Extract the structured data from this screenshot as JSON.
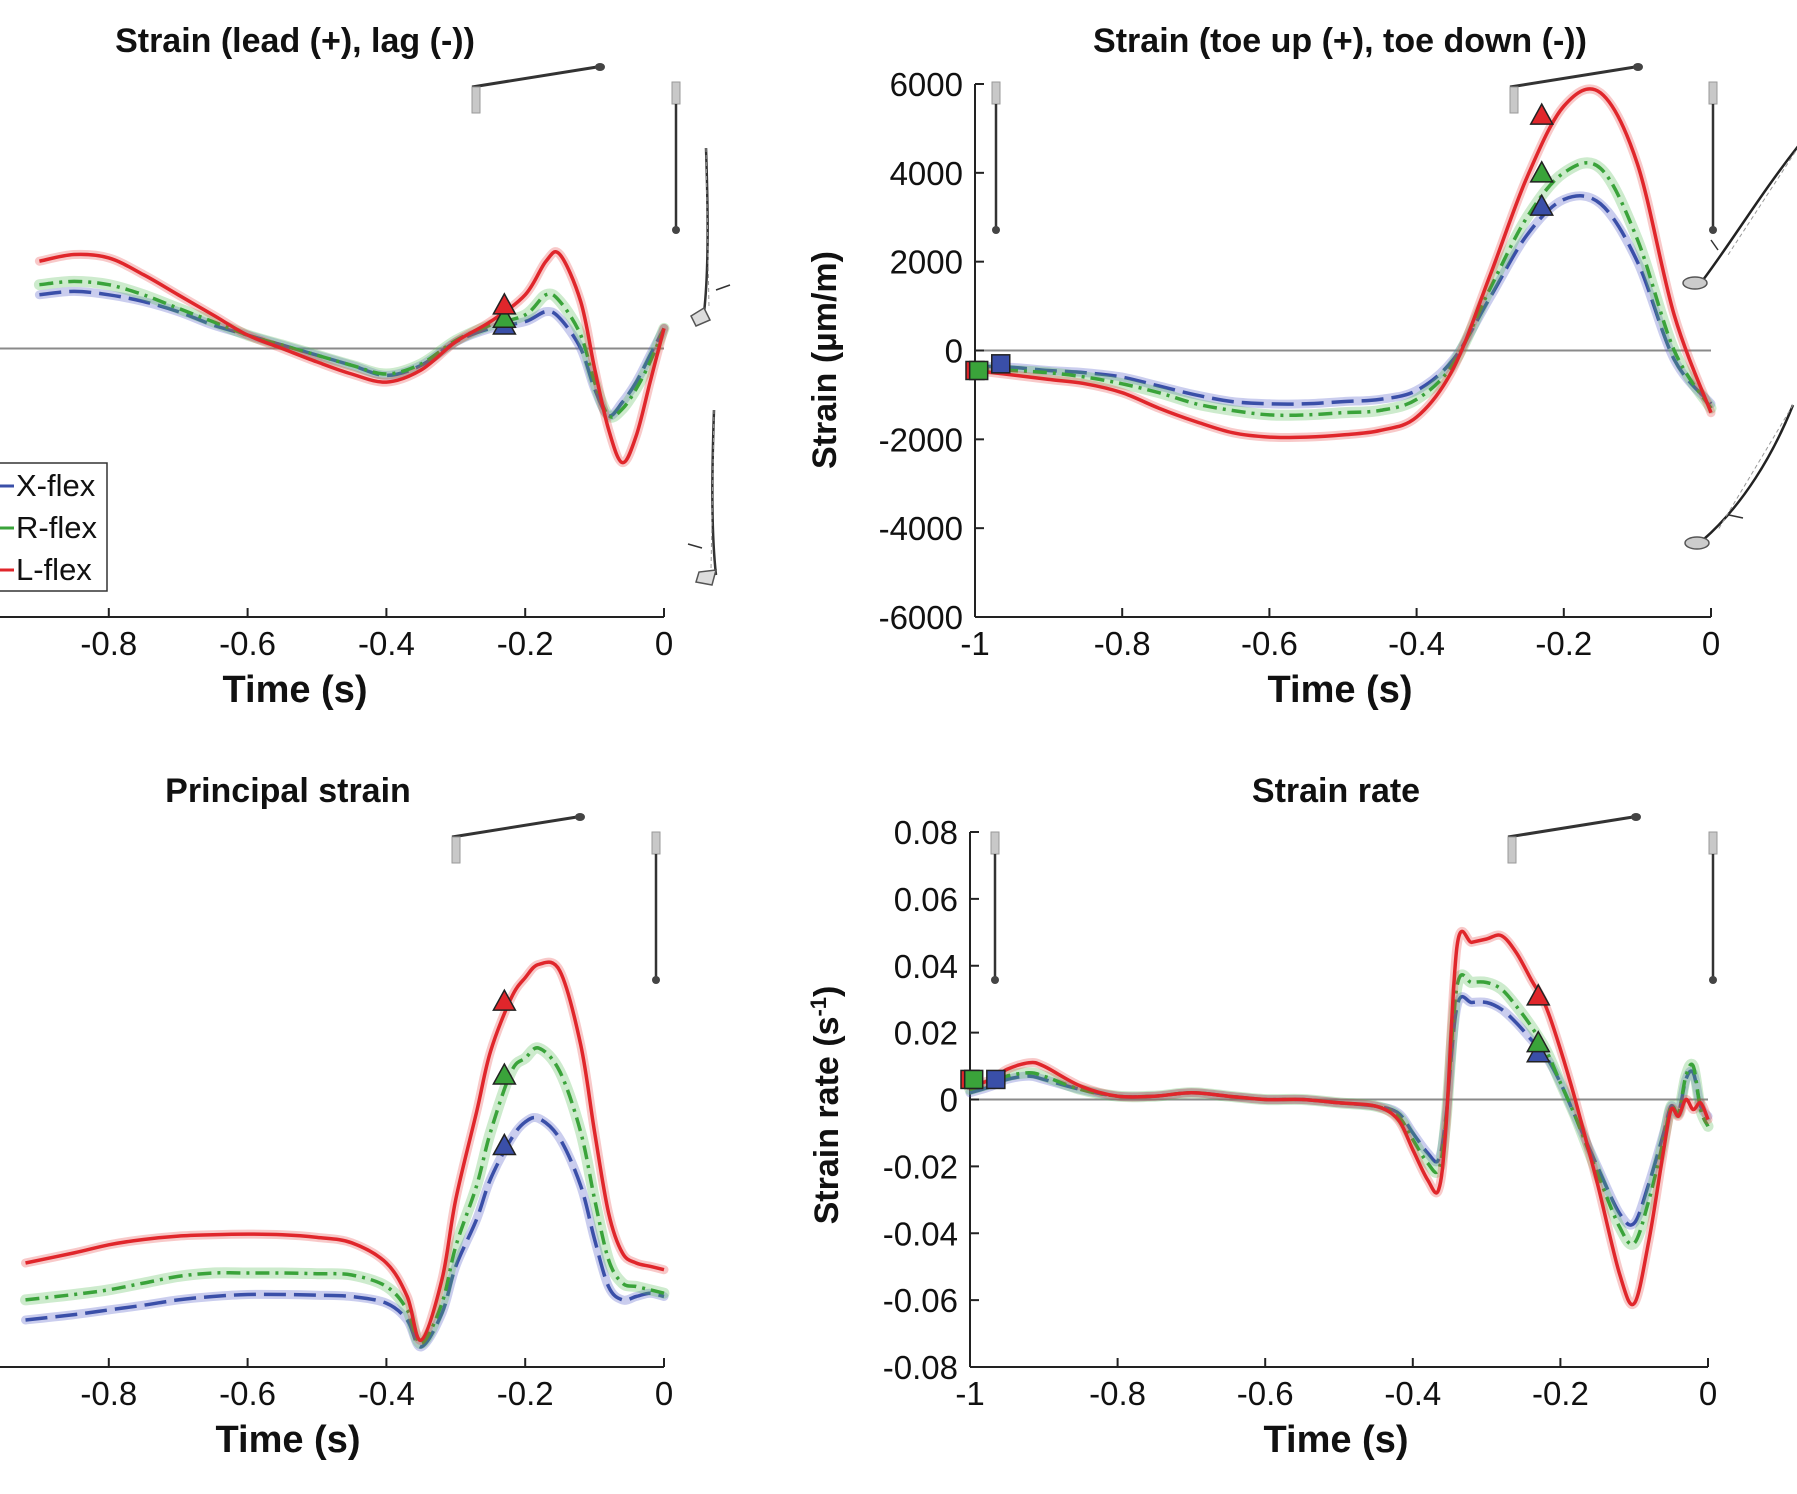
{
  "colors": {
    "x_flex": "#3a4fa8",
    "r_flex": "#3aa33a",
    "l_flex": "#e0262b",
    "zero_line": "#8a8a8a",
    "axis": "#222222"
  },
  "legend": {
    "items": [
      {
        "label": "X-flex",
        "color": "#3a4fa8"
      },
      {
        "label": "R-flex",
        "color": "#3aa33a"
      },
      {
        "label": "L-flex",
        "color": "#e0262b"
      }
    ]
  },
  "chart_data": [
    {
      "type": "line",
      "title": "Strain (lead (+), lag (-))",
      "xlabel": "Time (s)",
      "ylabel": "",
      "xlim": [
        -1,
        0
      ],
      "xticks": [
        "-0.8",
        "-0.6",
        "-0.4",
        "-0.2",
        "0"
      ],
      "yticks": [],
      "ylim": [
        -4000,
        4000
      ],
      "grid": false,
      "legend_position": "bottom-left",
      "markers": {
        "shape": "triangle",
        "x": -0.23,
        "values": {
          "X-flex": 350,
          "R-flex": 450,
          "L-flex": 650
        }
      },
      "series": [
        {
          "name": "X-flex",
          "x": [
            -0.9,
            -0.85,
            -0.8,
            -0.75,
            -0.7,
            -0.65,
            -0.6,
            -0.55,
            -0.5,
            -0.45,
            -0.4,
            -0.35,
            -0.3,
            -0.25,
            -0.2,
            -0.17,
            -0.15,
            -0.12,
            -0.1,
            -0.08,
            -0.06,
            -0.04,
            -0.02,
            0
          ],
          "values": [
            800,
            850,
            800,
            700,
            550,
            350,
            200,
            50,
            -100,
            -250,
            -400,
            -250,
            100,
            300,
            400,
            550,
            450,
            0,
            -600,
            -1000,
            -800,
            -500,
            -100,
            300
          ]
        },
        {
          "name": "R-flex",
          "x": [
            -0.9,
            -0.85,
            -0.8,
            -0.75,
            -0.7,
            -0.65,
            -0.6,
            -0.55,
            -0.5,
            -0.45,
            -0.4,
            -0.35,
            -0.3,
            -0.25,
            -0.2,
            -0.17,
            -0.15,
            -0.12,
            -0.1,
            -0.08,
            -0.06,
            -0.04,
            -0.02,
            0
          ],
          "values": [
            950,
            1000,
            950,
            800,
            600,
            400,
            200,
            50,
            -100,
            -250,
            -380,
            -230,
            120,
            350,
            500,
            800,
            700,
            200,
            -500,
            -1000,
            -900,
            -600,
            -200,
            300
          ]
        },
        {
          "name": "L-flex",
          "x": [
            -0.9,
            -0.85,
            -0.8,
            -0.75,
            -0.7,
            -0.65,
            -0.6,
            -0.55,
            -0.5,
            -0.45,
            -0.4,
            -0.35,
            -0.3,
            -0.25,
            -0.2,
            -0.17,
            -0.15,
            -0.12,
            -0.1,
            -0.08,
            -0.06,
            -0.04,
            -0.02,
            0
          ],
          "values": [
            1300,
            1400,
            1350,
            1100,
            800,
            500,
            200,
            0,
            -200,
            -380,
            -500,
            -320,
            100,
            400,
            800,
            1300,
            1400,
            700,
            -300,
            -1200,
            -1700,
            -1300,
            -500,
            300
          ]
        }
      ]
    },
    {
      "type": "line",
      "title": "Strain (toe up (+), toe down (-))",
      "xlabel": "Time (s)",
      "ylabel": "Strain (µm/m)",
      "xlim": [
        -1,
        0
      ],
      "xticks": [
        "-1",
        "-0.8",
        "-0.6",
        "-0.4",
        "-0.2",
        "0"
      ],
      "ylim": [
        -6000,
        6000
      ],
      "yticks": [
        "6000",
        "4000",
        "2000",
        "0",
        "-2000",
        "-4000",
        "-6000"
      ],
      "grid": false,
      "markers": {
        "start_shape": "square",
        "start_values": {
          "X-flex": -300,
          "R-flex": -450,
          "L-flex": -450
        },
        "shape": "triangle",
        "x": -0.23,
        "values": {
          "X-flex": 3250,
          "R-flex": 4000,
          "L-flex": 5300
        }
      },
      "series": [
        {
          "name": "X-flex",
          "x": [
            -1,
            -0.95,
            -0.9,
            -0.85,
            -0.8,
            -0.75,
            -0.7,
            -0.65,
            -0.6,
            -0.55,
            -0.5,
            -0.45,
            -0.4,
            -0.35,
            -0.3,
            -0.25,
            -0.2,
            -0.15,
            -0.1,
            -0.05,
            0
          ],
          "values": [
            -350,
            -380,
            -450,
            -500,
            -600,
            -800,
            -1000,
            -1150,
            -1200,
            -1200,
            -1150,
            -1100,
            -900,
            -200,
            1200,
            2600,
            3400,
            3300,
            2000,
            -200,
            -1200
          ]
        },
        {
          "name": "R-flex",
          "x": [
            -1,
            -0.95,
            -0.9,
            -0.85,
            -0.8,
            -0.75,
            -0.7,
            -0.65,
            -0.6,
            -0.55,
            -0.5,
            -0.45,
            -0.4,
            -0.35,
            -0.3,
            -0.25,
            -0.2,
            -0.15,
            -0.1,
            -0.05,
            0
          ],
          "values": [
            -400,
            -450,
            -500,
            -600,
            -750,
            -950,
            -1200,
            -1350,
            -1450,
            -1450,
            -1400,
            -1350,
            -1100,
            -300,
            1400,
            3000,
            4000,
            4100,
            2500,
            0,
            -1300
          ]
        },
        {
          "name": "L-flex",
          "x": [
            -1,
            -0.95,
            -0.9,
            -0.85,
            -0.8,
            -0.75,
            -0.7,
            -0.65,
            -0.6,
            -0.55,
            -0.5,
            -0.45,
            -0.4,
            -0.35,
            -0.3,
            -0.25,
            -0.2,
            -0.15,
            -0.1,
            -0.05,
            0
          ],
          "values": [
            -450,
            -550,
            -650,
            -750,
            -950,
            -1300,
            -1600,
            -1850,
            -1950,
            -1950,
            -1900,
            -1800,
            -1500,
            -400,
            1700,
            3900,
            5500,
            5800,
            4200,
            800,
            -1400
          ]
        }
      ]
    },
    {
      "type": "line",
      "title": "Principal strain",
      "xlabel": "Time (s)",
      "ylabel": "",
      "xlim": [
        -1,
        0
      ],
      "xticks": [
        "-0.8",
        "-0.6",
        "-0.4",
        "-0.2",
        "0"
      ],
      "yticks": [],
      "ylim": [
        0,
        8000
      ],
      "grid": false,
      "markers": {
        "shape": "triangle",
        "x": -0.23,
        "values": {
          "X-flex": 3300,
          "R-flex": 4350,
          "L-flex": 5450
        }
      },
      "series": [
        {
          "name": "X-flex",
          "x": [
            -0.92,
            -0.85,
            -0.8,
            -0.75,
            -0.7,
            -0.65,
            -0.6,
            -0.55,
            -0.5,
            -0.45,
            -0.4,
            -0.37,
            -0.35,
            -0.32,
            -0.3,
            -0.27,
            -0.25,
            -0.22,
            -0.2,
            -0.18,
            -0.15,
            -0.12,
            -0.1,
            -0.08,
            -0.06,
            -0.04,
            -0.02,
            0
          ],
          "values": [
            700,
            780,
            850,
            920,
            1000,
            1050,
            1080,
            1080,
            1070,
            1050,
            950,
            700,
            300,
            800,
            1500,
            2200,
            2800,
            3400,
            3650,
            3700,
            3400,
            2700,
            1900,
            1200,
            1000,
            1050,
            1100,
            1050
          ]
        },
        {
          "name": "R-flex",
          "x": [
            -0.92,
            -0.85,
            -0.8,
            -0.75,
            -0.7,
            -0.65,
            -0.6,
            -0.55,
            -0.5,
            -0.45,
            -0.4,
            -0.37,
            -0.35,
            -0.32,
            -0.3,
            -0.27,
            -0.25,
            -0.22,
            -0.2,
            -0.18,
            -0.15,
            -0.12,
            -0.1,
            -0.08,
            -0.06,
            -0.04,
            -0.02,
            0
          ],
          "values": [
            1000,
            1080,
            1150,
            1250,
            1350,
            1400,
            1400,
            1400,
            1390,
            1370,
            1200,
            850,
            350,
            950,
            1800,
            2700,
            3500,
            4400,
            4600,
            4750,
            4400,
            3500,
            2500,
            1600,
            1250,
            1200,
            1150,
            1100
          ]
        },
        {
          "name": "L-flex",
          "x": [
            -0.92,
            -0.85,
            -0.8,
            -0.75,
            -0.7,
            -0.65,
            -0.6,
            -0.55,
            -0.5,
            -0.45,
            -0.4,
            -0.37,
            -0.35,
            -0.32,
            -0.3,
            -0.27,
            -0.25,
            -0.22,
            -0.2,
            -0.18,
            -0.15,
            -0.12,
            -0.1,
            -0.08,
            -0.06,
            -0.04,
            -0.02,
            0
          ],
          "values": [
            1550,
            1700,
            1820,
            1900,
            1950,
            1970,
            1980,
            1970,
            1930,
            1850,
            1550,
            1050,
            400,
            1300,
            2500,
            3800,
            4700,
            5500,
            5800,
            6000,
            5900,
            4800,
            3500,
            2300,
            1700,
            1550,
            1500,
            1450
          ]
        }
      ]
    },
    {
      "type": "line",
      "title": "Strain rate",
      "xlabel": "Time (s)",
      "ylabel": "Strain rate (s-1)",
      "xlim": [
        -1,
        0
      ],
      "xticks": [
        "-1",
        "-0.8",
        "-0.6",
        "-0.4",
        "-0.2",
        "0"
      ],
      "ylim": [
        -0.08,
        0.08
      ],
      "yticks": [
        "0.08",
        "0.06",
        "0.04",
        "0.02",
        "0",
        "-0.02",
        "-0.04",
        "-0.06",
        "-0.08"
      ],
      "grid": false,
      "markers": {
        "start_shape": "square",
        "start_values": {
          "X-flex": 0.006,
          "R-flex": 0.006,
          "L-flex": 0.006
        },
        "shape": "triangle",
        "x": -0.23,
        "values": {
          "X-flex": 0.014,
          "R-flex": 0.017,
          "L-flex": 0.031
        }
      },
      "series": [
        {
          "name": "X-flex",
          "x": [
            -1,
            -0.97,
            -0.95,
            -0.92,
            -0.9,
            -0.85,
            -0.8,
            -0.75,
            -0.7,
            -0.65,
            -0.6,
            -0.55,
            -0.5,
            -0.45,
            -0.42,
            -0.4,
            -0.38,
            -0.365,
            -0.355,
            -0.34,
            -0.32,
            -0.3,
            -0.28,
            -0.26,
            -0.24,
            -0.22,
            -0.2,
            -0.18,
            -0.15,
            -0.12,
            -0.1,
            -0.08,
            -0.06,
            -0.05,
            -0.04,
            -0.03,
            -0.02,
            -0.01,
            0
          ],
          "values": [
            0.002,
            0.004,
            0.006,
            0.007,
            0.006,
            0.003,
            0.001,
            0.001,
            0.002,
            0.001,
            0,
            0,
            -0.001,
            -0.002,
            -0.004,
            -0.01,
            -0.016,
            -0.018,
            -0.005,
            0.028,
            0.029,
            0.029,
            0.027,
            0.023,
            0.018,
            0.013,
            0.005,
            -0.005,
            -0.02,
            -0.034,
            -0.037,
            -0.025,
            -0.01,
            -0.002,
            -0.004,
            0.006,
            0.008,
            -0.002,
            -0.005
          ]
        },
        {
          "name": "R-flex",
          "x": [
            -1,
            -0.97,
            -0.95,
            -0.92,
            -0.9,
            -0.85,
            -0.8,
            -0.75,
            -0.7,
            -0.65,
            -0.6,
            -0.55,
            -0.5,
            -0.45,
            -0.42,
            -0.4,
            -0.38,
            -0.365,
            -0.355,
            -0.34,
            -0.32,
            -0.3,
            -0.28,
            -0.26,
            -0.24,
            -0.22,
            -0.2,
            -0.18,
            -0.15,
            -0.12,
            -0.1,
            -0.08,
            -0.06,
            -0.05,
            -0.04,
            -0.03,
            -0.02,
            -0.01,
            0
          ],
          "values": [
            0.003,
            0.005,
            0.007,
            0.008,
            0.007,
            0.003,
            0.001,
            0.001,
            0.002,
            0.001,
            0,
            0,
            -0.001,
            -0.002,
            -0.005,
            -0.012,
            -0.019,
            -0.021,
            -0.006,
            0.034,
            0.035,
            0.035,
            0.033,
            0.028,
            0.022,
            0.015,
            0.005,
            -0.005,
            -0.022,
            -0.038,
            -0.043,
            -0.03,
            -0.012,
            -0.002,
            -0.004,
            0.007,
            0.01,
            -0.003,
            -0.008
          ]
        },
        {
          "name": "L-flex",
          "x": [
            -1,
            -0.97,
            -0.95,
            -0.92,
            -0.9,
            -0.85,
            -0.8,
            -0.75,
            -0.7,
            -0.65,
            -0.6,
            -0.55,
            -0.5,
            -0.45,
            -0.42,
            -0.4,
            -0.38,
            -0.365,
            -0.355,
            -0.34,
            -0.32,
            -0.3,
            -0.28,
            -0.26,
            -0.24,
            -0.22,
            -0.2,
            -0.18,
            -0.15,
            -0.12,
            -0.1,
            -0.08,
            -0.06,
            -0.05,
            -0.04,
            -0.03,
            -0.02,
            -0.01,
            0
          ],
          "values": [
            0.004,
            0.006,
            0.009,
            0.011,
            0.01,
            0.004,
            0.001,
            0.001,
            0.002,
            0.001,
            0,
            0,
            -0.001,
            -0.002,
            -0.006,
            -0.015,
            -0.024,
            -0.027,
            -0.008,
            0.046,
            0.047,
            0.048,
            0.049,
            0.044,
            0.036,
            0.028,
            0.015,
            0,
            -0.025,
            -0.052,
            -0.061,
            -0.042,
            -0.015,
            -0.003,
            -0.005,
            0,
            -0.003,
            -0.001,
            -0.006
          ]
        }
      ]
    }
  ]
}
